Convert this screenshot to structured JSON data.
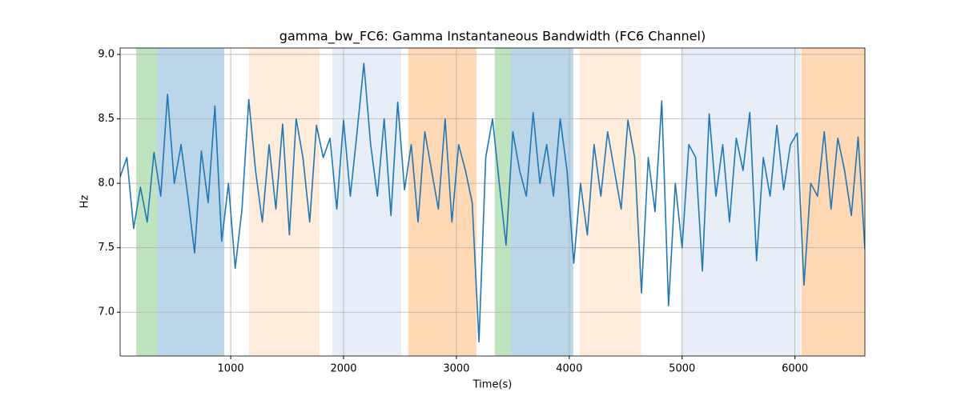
{
  "chart_data": {
    "type": "line",
    "title": "gamma_bw_FC6: Gamma Instantaneous Bandwidth (FC6 Channel)",
    "x_label": "Time(s)",
    "y_label": "Hz",
    "xlim": [
      20,
      6620
    ],
    "ylim": [
      6.66,
      9.05
    ],
    "xticks": [
      1000,
      2000,
      3000,
      4000,
      5000,
      6000
    ],
    "yticks": [
      {
        "value": 7,
        "label": "7.0"
      },
      7.5,
      {
        "value": 8,
        "label": "8.0"
      },
      8.5,
      {
        "value": 9,
        "label": "9.0"
      }
    ],
    "grid": true,
    "spans": [
      {
        "start": 163,
        "end": 347,
        "color": "#2ca02c",
        "alpha": 0.3
      },
      {
        "start": 347,
        "end": 943,
        "color": "#1f77b4",
        "alpha": 0.3
      },
      {
        "start": 1163,
        "end": 1787,
        "color": "#ff7f0e",
        "alpha": 0.15
      },
      {
        "start": 1900,
        "end": 2510,
        "color": "#aec7e8",
        "alpha": 0.3
      },
      {
        "start": 2574,
        "end": 3177,
        "color": "#ff7f0e",
        "alpha": 0.3
      },
      {
        "start": 3340,
        "end": 3482,
        "color": "#2ca02c",
        "alpha": 0.3
      },
      {
        "start": 3482,
        "end": 4035,
        "color": "#1f77b4",
        "alpha": 0.3
      },
      {
        "start": 4092,
        "end": 4638,
        "color": "#ff7f0e",
        "alpha": 0.15
      },
      {
        "start": 4993,
        "end": 6050,
        "color": "#aec7e8",
        "alpha": 0.3
      },
      {
        "start": 6057,
        "end": 6620,
        "color": "#ff7f0e",
        "alpha": 0.3
      }
    ],
    "x": [
      20,
      80,
      140,
      200,
      260,
      320,
      380,
      440,
      500,
      560,
      620,
      680,
      740,
      800,
      860,
      920,
      980,
      1040,
      1100,
      1160,
      1220,
      1280,
      1340,
      1400,
      1460,
      1520,
      1580,
      1640,
      1700,
      1760,
      1820,
      1880,
      1940,
      2000,
      2060,
      2120,
      2180,
      2240,
      2300,
      2360,
      2420,
      2480,
      2540,
      2600,
      2660,
      2720,
      2780,
      2840,
      2900,
      2960,
      3020,
      3080,
      3140,
      3200,
      3260,
      3320,
      3380,
      3440,
      3500,
      3560,
      3620,
      3680,
      3740,
      3800,
      3860,
      3920,
      3980,
      4040,
      4100,
      4160,
      4220,
      4280,
      4340,
      4400,
      4460,
      4520,
      4580,
      4640,
      4700,
      4760,
      4820,
      4880,
      4940,
      5000,
      5060,
      5120,
      5180,
      5240,
      5300,
      5360,
      5420,
      5480,
      5540,
      5600,
      5660,
      5720,
      5780,
      5840,
      5900,
      5960,
      6020,
      6080,
      6140,
      6200,
      6260,
      6320,
      6380,
      6440,
      6500,
      6560,
      6620
    ],
    "series": [
      {
        "color": "#1f77b4",
        "values": [
          8.05,
          8.2,
          7.65,
          7.97,
          7.7,
          8.24,
          7.9,
          8.69,
          8.0,
          8.3,
          7.9,
          7.46,
          8.25,
          7.85,
          8.6,
          7.55,
          8.0,
          7.34,
          7.8,
          8.65,
          8.1,
          7.7,
          8.3,
          7.8,
          8.46,
          7.6,
          8.5,
          8.2,
          7.7,
          8.45,
          8.2,
          8.35,
          7.8,
          8.49,
          7.9,
          8.4,
          8.93,
          8.3,
          7.9,
          8.5,
          7.75,
          8.63,
          7.95,
          8.3,
          7.7,
          8.4,
          8.1,
          7.8,
          8.5,
          7.7,
          8.3,
          8.1,
          7.85,
          6.77,
          8.2,
          8.5,
          8.0,
          7.52,
          8.4,
          8.1,
          7.9,
          8.55,
          8.0,
          8.3,
          7.9,
          8.5,
          8.1,
          7.38,
          8.0,
          7.6,
          8.3,
          7.9,
          8.4,
          8.1,
          7.8,
          8.49,
          8.2,
          7.15,
          8.2,
          7.78,
          8.64,
          7.05,
          8.0,
          7.5,
          8.3,
          8.2,
          7.32,
          8.54,
          7.9,
          8.3,
          7.7,
          8.35,
          8.1,
          8.55,
          7.4,
          8.2,
          7.9,
          8.45,
          7.95,
          8.3,
          8.39,
          7.21,
          8.0,
          7.9,
          8.4,
          7.8,
          8.35,
          8.1,
          7.75,
          8.36,
          7.49
        ]
      }
    ]
  }
}
